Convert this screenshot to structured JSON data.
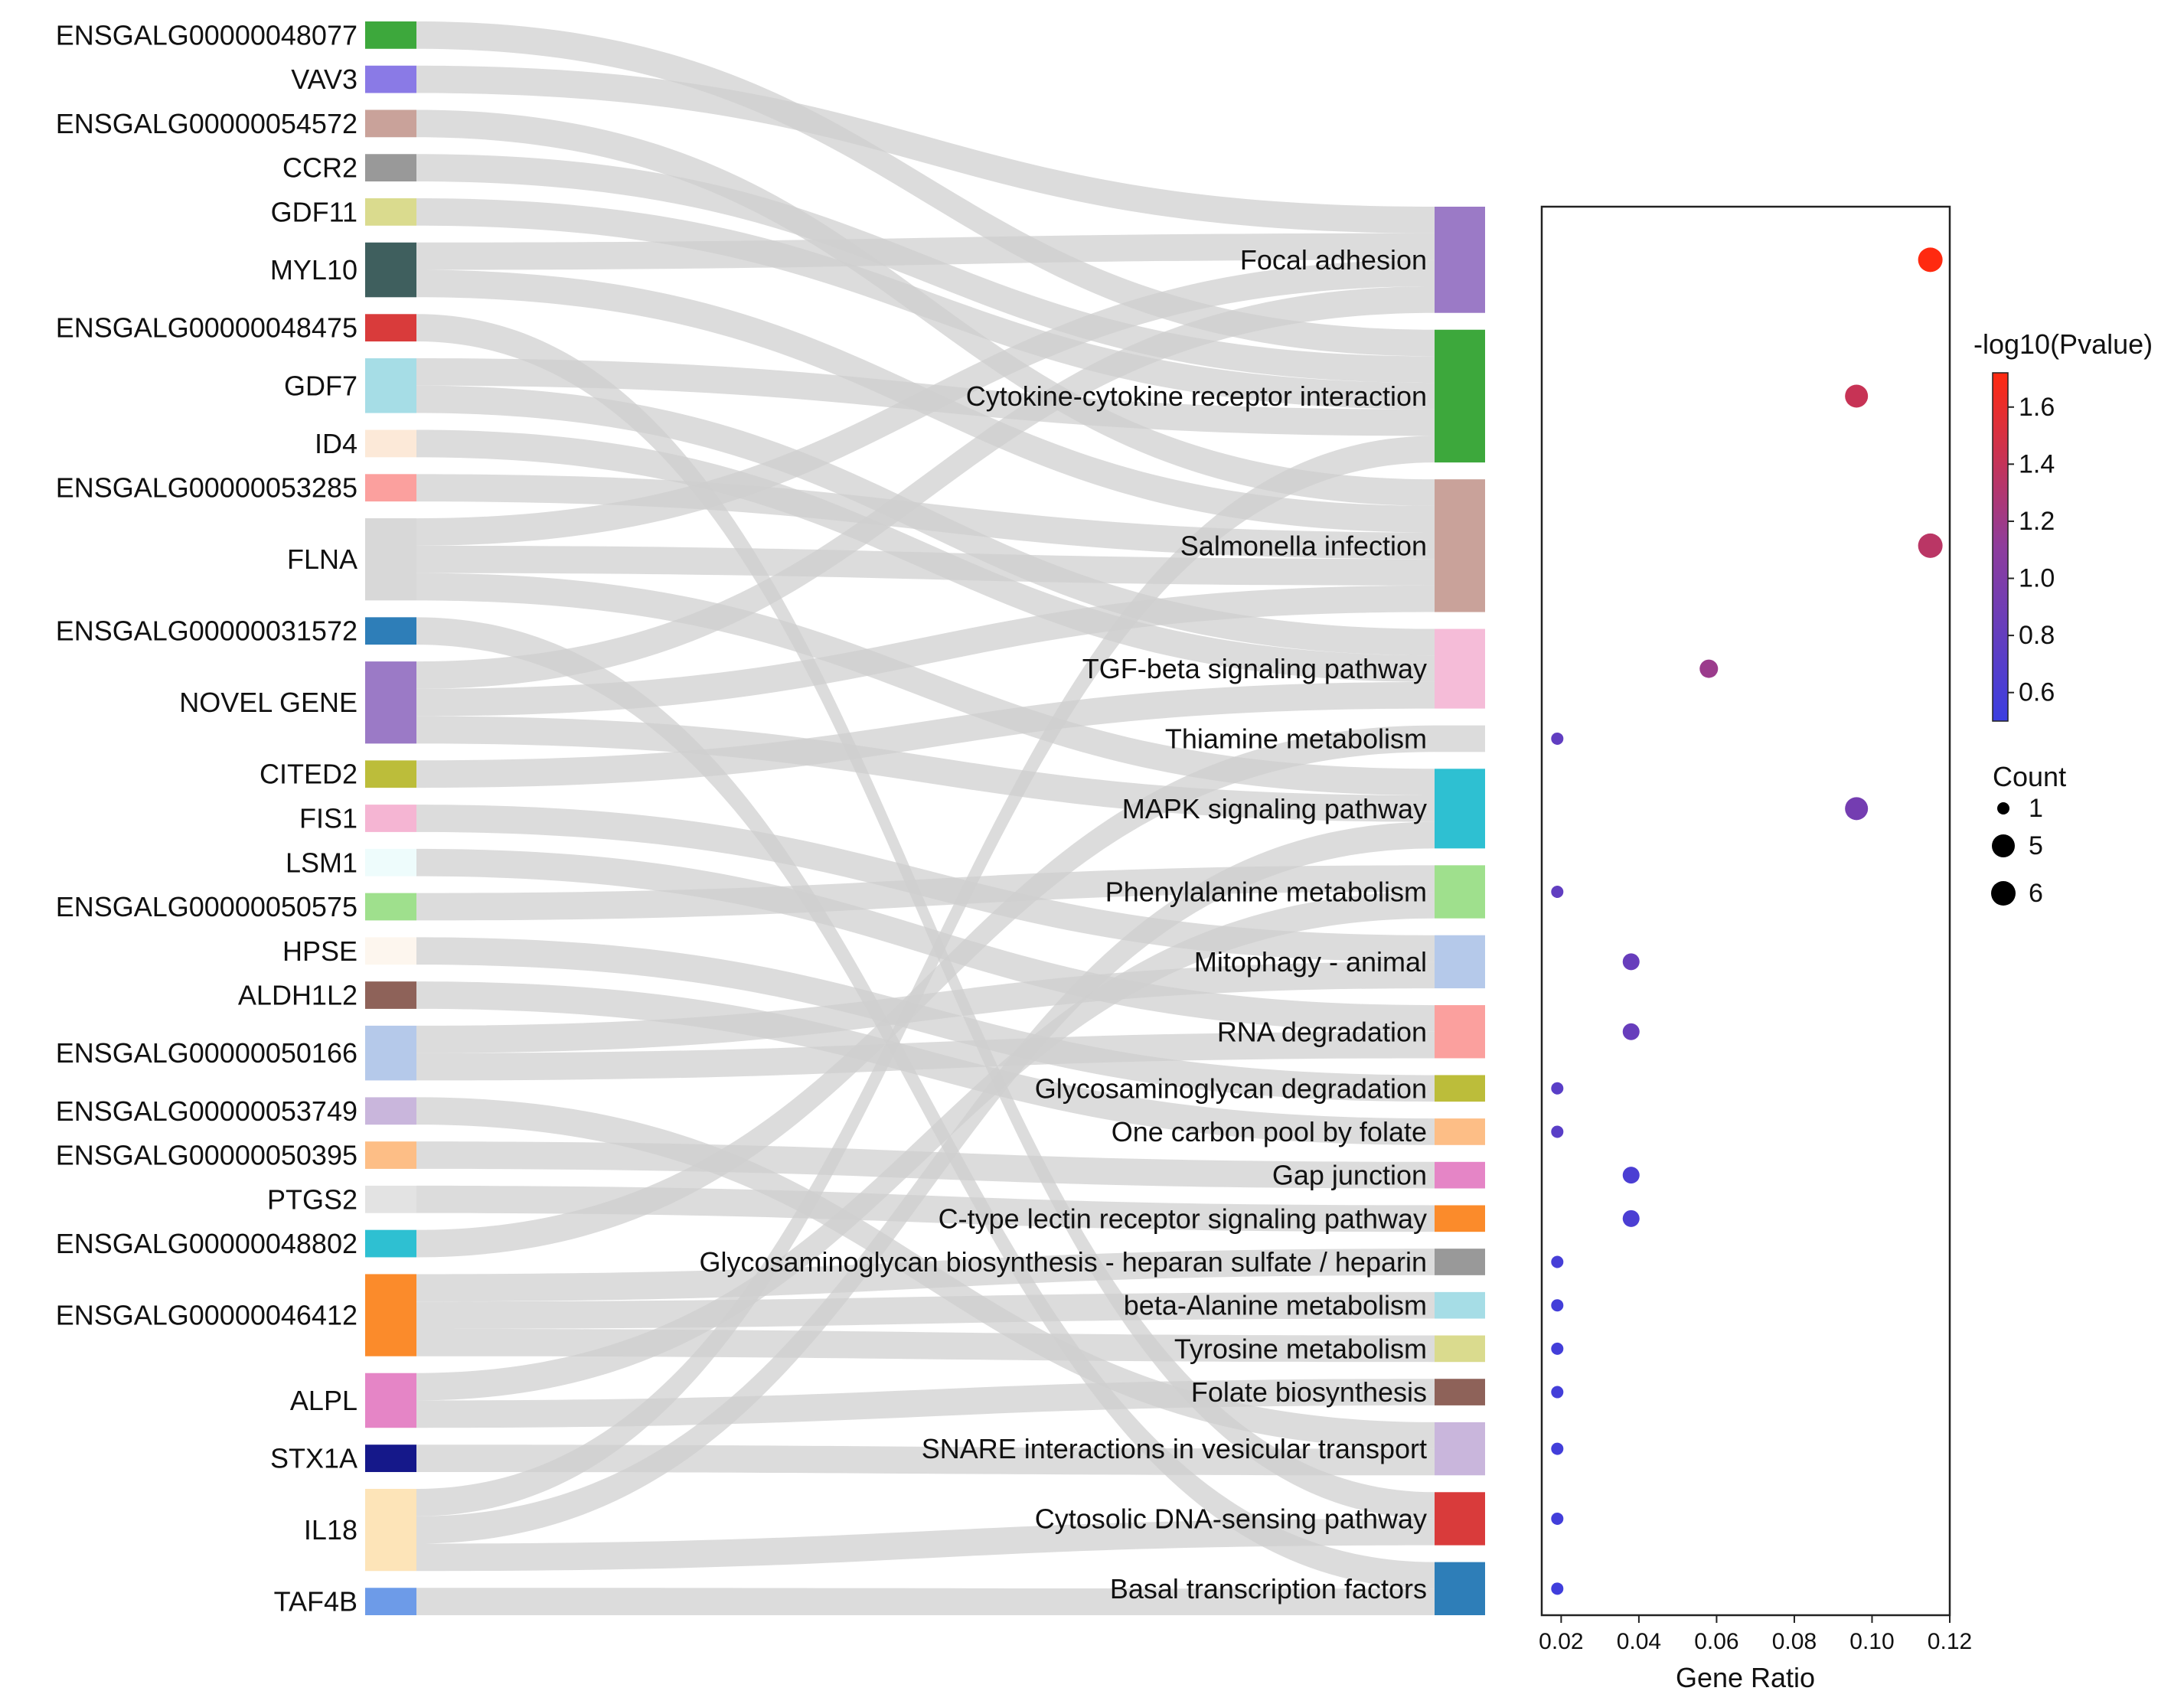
{
  "chart_data": {
    "type": "sankey-dotplot",
    "genes": [
      {
        "name": "ENSGALG00000048077",
        "color": "#3da83c"
      },
      {
        "name": "VAV3",
        "color": "#8a7ae6"
      },
      {
        "name": "ENSGALG00000054572",
        "color": "#c9a29a"
      },
      {
        "name": "CCR2",
        "color": "#999999"
      },
      {
        "name": "GDF11",
        "color": "#dadb8e"
      },
      {
        "name": "MYL10",
        "color": "#3f5f5e"
      },
      {
        "name": "ENSGALG00000048475",
        "color": "#d93b3b"
      },
      {
        "name": "GDF7",
        "color": "#a6dde6"
      },
      {
        "name": "ID4",
        "color": "#fce9d8"
      },
      {
        "name": "ENSGALG00000053285",
        "color": "#fba09e"
      },
      {
        "name": "FLNA",
        "color": "#d8d8d8"
      },
      {
        "name": "ENSGALG00000031572",
        "color": "#2e7eb8"
      },
      {
        "name": "NOVEL GENE",
        "color": "#9b7ac6"
      },
      {
        "name": "CITED2",
        "color": "#bcbd3a"
      },
      {
        "name": "FIS1",
        "color": "#f5b5d3"
      },
      {
        "name": "LSM1",
        "color": "#eefcfc"
      },
      {
        "name": "ENSGALG00000050575",
        "color": "#9fe08d"
      },
      {
        "name": "HPSE",
        "color": "#fdf6ee"
      },
      {
        "name": "ALDH1L2",
        "color": "#8e6259"
      },
      {
        "name": "ENSGALG00000050166",
        "color": "#b5c9ea"
      },
      {
        "name": "ENSGALG00000053749",
        "color": "#c9b6dc"
      },
      {
        "name": "ENSGALG00000050395",
        "color": "#fdbe86"
      },
      {
        "name": "PTGS2",
        "color": "#e3e3e3"
      },
      {
        "name": "ENSGALG00000048802",
        "color": "#2ec0d2"
      },
      {
        "name": "ENSGALG00000046412",
        "color": "#fb8b2b"
      },
      {
        "name": "ALPL",
        "color": "#e585c6"
      },
      {
        "name": "STX1A",
        "color": "#15188a"
      },
      {
        "name": "IL18",
        "color": "#fde4b8"
      },
      {
        "name": "TAF4B",
        "color": "#6d9be8"
      }
    ],
    "pathways": [
      {
        "name": "Focal adhesion",
        "color": "#9b7ac6",
        "gene_ratio": 0.115,
        "neg_log10_p": 1.72,
        "count": 6
      },
      {
        "name": "Cytokine-cytokine receptor interaction",
        "color": "#3da83c",
        "gene_ratio": 0.096,
        "neg_log10_p": 1.42,
        "count": 5
      },
      {
        "name": "Salmonella infection",
        "color": "#c9a29a",
        "gene_ratio": 0.115,
        "neg_log10_p": 1.35,
        "count": 6
      },
      {
        "name": "TGF-beta signaling pathway",
        "color": "#f5bcd8",
        "gene_ratio": 0.058,
        "neg_log10_p": 1.18,
        "count": 3
      },
      {
        "name": "Thiamine metabolism",
        "color": "#dcdcdc",
        "gene_ratio": 0.019,
        "neg_log10_p": 0.78,
        "count": 1
      },
      {
        "name": "MAPK signaling pathway",
        "color": "#2ec0d2",
        "gene_ratio": 0.096,
        "neg_log10_p": 0.92,
        "count": 5
      },
      {
        "name": "Phenylalanine metabolism",
        "color": "#9fe08d",
        "gene_ratio": 0.019,
        "neg_log10_p": 0.78,
        "count": 1
      },
      {
        "name": "Mitophagy - animal",
        "color": "#b5c9ea",
        "gene_ratio": 0.038,
        "neg_log10_p": 0.82,
        "count": 2
      },
      {
        "name": "RNA degradation",
        "color": "#fba09e",
        "gene_ratio": 0.038,
        "neg_log10_p": 0.82,
        "count": 2
      },
      {
        "name": "Glycosaminoglycan degradation",
        "color": "#bcbd3a",
        "gene_ratio": 0.019,
        "neg_log10_p": 0.72,
        "count": 1
      },
      {
        "name": "One carbon pool by folate",
        "color": "#fdbe86",
        "gene_ratio": 0.019,
        "neg_log10_p": 0.72,
        "count": 1
      },
      {
        "name": "Gap junction",
        "color": "#e585c6",
        "gene_ratio": 0.038,
        "neg_log10_p": 0.62,
        "count": 2
      },
      {
        "name": "C-type lectin receptor signaling pathway",
        "color": "#fb8b2b",
        "gene_ratio": 0.038,
        "neg_log10_p": 0.62,
        "count": 2
      },
      {
        "name": "Glycosaminoglycan biosynthesis - heparan sulfate / heparin",
        "color": "#999999",
        "gene_ratio": 0.019,
        "neg_log10_p": 0.58,
        "count": 1
      },
      {
        "name": "beta-Alanine metabolism",
        "color": "#a6dde6",
        "gene_ratio": 0.019,
        "neg_log10_p": 0.56,
        "count": 1
      },
      {
        "name": "Tyrosine metabolism",
        "color": "#dadb8e",
        "gene_ratio": 0.019,
        "neg_log10_p": 0.56,
        "count": 1
      },
      {
        "name": "Folate biosynthesis",
        "color": "#8e6259",
        "gene_ratio": 0.019,
        "neg_log10_p": 0.56,
        "count": 1
      },
      {
        "name": "SNARE interactions in vesicular transport",
        "color": "#c9b6dc",
        "gene_ratio": 0.019,
        "neg_log10_p": 0.55,
        "count": 1
      },
      {
        "name": "Cytosolic DNA-sensing pathway",
        "color": "#d93b3b",
        "gene_ratio": 0.019,
        "neg_log10_p": 0.55,
        "count": 1
      },
      {
        "name": "Basal transcription factors",
        "color": "#2e7eb8",
        "gene_ratio": 0.019,
        "neg_log10_p": 0.54,
        "count": 1
      }
    ],
    "links": [
      [
        "ENSGALG00000048077",
        "Cytokine-cytokine receptor interaction"
      ],
      [
        "VAV3",
        "Focal adhesion"
      ],
      [
        "ENSGALG00000054572",
        "Salmonella infection"
      ],
      [
        "CCR2",
        "Cytokine-cytokine receptor interaction"
      ],
      [
        "GDF11",
        "Cytokine-cytokine receptor interaction"
      ],
      [
        "MYL10",
        "Focal adhesion"
      ],
      [
        "MYL10",
        "Salmonella infection"
      ],
      [
        "ENSGALG00000048475",
        "Cytosolic DNA-sensing pathway"
      ],
      [
        "GDF7",
        "Cytokine-cytokine receptor interaction"
      ],
      [
        "GDF7",
        "TGF-beta signaling pathway"
      ],
      [
        "ID4",
        "TGF-beta signaling pathway"
      ],
      [
        "ENSGALG00000053285",
        "Salmonella infection"
      ],
      [
        "FLNA",
        "Focal adhesion"
      ],
      [
        "FLNA",
        "Salmonella infection"
      ],
      [
        "FLNA",
        "MAPK signaling pathway"
      ],
      [
        "ENSGALG00000031572",
        "Basal transcription factors"
      ],
      [
        "NOVEL GENE",
        "Focal adhesion"
      ],
      [
        "NOVEL GENE",
        "Salmonella infection"
      ],
      [
        "NOVEL GENE",
        "MAPK signaling pathway"
      ],
      [
        "CITED2",
        "TGF-beta signaling pathway"
      ],
      [
        "FIS1",
        "Mitophagy - animal"
      ],
      [
        "LSM1",
        "RNA degradation"
      ],
      [
        "ENSGALG00000050575",
        "Phenylalanine metabolism"
      ],
      [
        "HPSE",
        "Glycosaminoglycan degradation"
      ],
      [
        "ALDH1L2",
        "One carbon pool by folate"
      ],
      [
        "ENSGALG00000050166",
        "Mitophagy - animal"
      ],
      [
        "ENSGALG00000050166",
        "RNA degradation"
      ],
      [
        "ENSGALG00000053749",
        "SNARE interactions in vesicular transport"
      ],
      [
        "ENSGALG00000050395",
        "Gap junction"
      ],
      [
        "PTGS2",
        "C-type lectin receptor signaling pathway"
      ],
      [
        "ENSGALG00000048802",
        "Thiamine metabolism"
      ],
      [
        "ENSGALG00000046412",
        "Glycosaminoglycan biosynthesis - heparan sulfate / heparin"
      ],
      [
        "ENSGALG00000046412",
        "beta-Alanine metabolism"
      ],
      [
        "ENSGALG00000046412",
        "Tyrosine metabolism"
      ],
      [
        "ALPL",
        "Phenylalanine metabolism"
      ],
      [
        "ALPL",
        "Folate biosynthesis"
      ],
      [
        "STX1A",
        "SNARE interactions in vesicular transport"
      ],
      [
        "IL18",
        "Cytokine-cytokine receptor interaction"
      ],
      [
        "IL18",
        "Cytosolic DNA-sensing pathway"
      ],
      [
        "IL18",
        "MAPK signaling pathway"
      ],
      [
        "TAF4B",
        "Basal transcription factors"
      ]
    ],
    "dotplot": {
      "xlabel": "Gene Ratio",
      "xlim": [
        0.015,
        0.12
      ],
      "xticks": [
        "0.02",
        "0.04",
        "0.06",
        "0.08",
        "0.10",
        "0.12"
      ],
      "xtick_values": [
        0.02,
        0.04,
        0.06,
        0.08,
        0.1,
        0.12
      ],
      "colorbar_title": "-log10(Pvalue)",
      "colorbar_range": [
        0.5,
        1.72
      ],
      "colorbar_ticks": [
        "0.6",
        "0.8",
        "1.0",
        "1.2",
        "1.4",
        "1.6"
      ],
      "colorbar_tick_values": [
        0.6,
        0.8,
        1.0,
        1.2,
        1.4,
        1.6
      ],
      "colorbar_colors": [
        "#3b3ee0",
        "#8e3d9c",
        "#ff2a10"
      ],
      "size_legend_title": "Count",
      "size_legend": [
        {
          "label": "1",
          "count": 1
        },
        {
          "label": "5",
          "count": 5
        },
        {
          "label": "6",
          "count": 6
        }
      ]
    }
  }
}
